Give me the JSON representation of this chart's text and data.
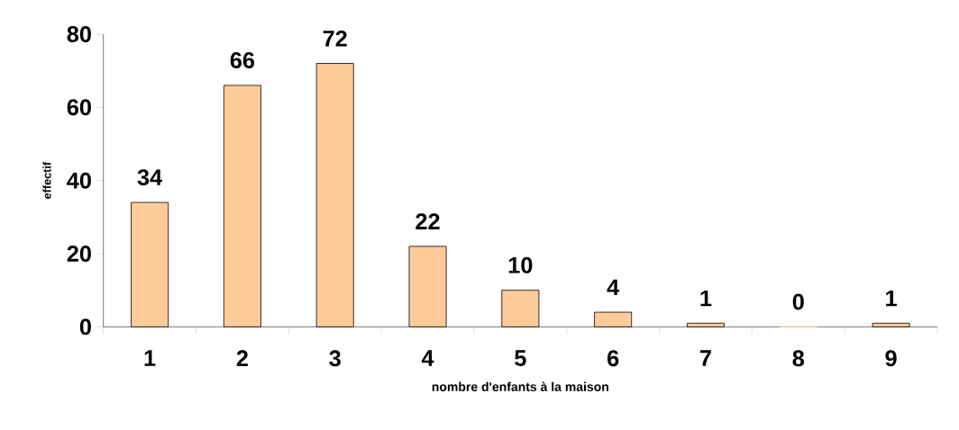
{
  "chart_data": {
    "type": "bar",
    "xlabel": "nombre d'enfants à la maison",
    "ylabel": "effectif",
    "categories": [
      "1",
      "2",
      "3",
      "4",
      "5",
      "6",
      "7",
      "8",
      "9"
    ],
    "values": [
      34,
      66,
      72,
      22,
      10,
      4,
      1,
      0,
      1
    ],
    "color": "#ffcc99",
    "ylim": [
      0,
      80
    ],
    "yticks": [
      0,
      20,
      40,
      60,
      80
    ],
    "data_labels": true
  }
}
